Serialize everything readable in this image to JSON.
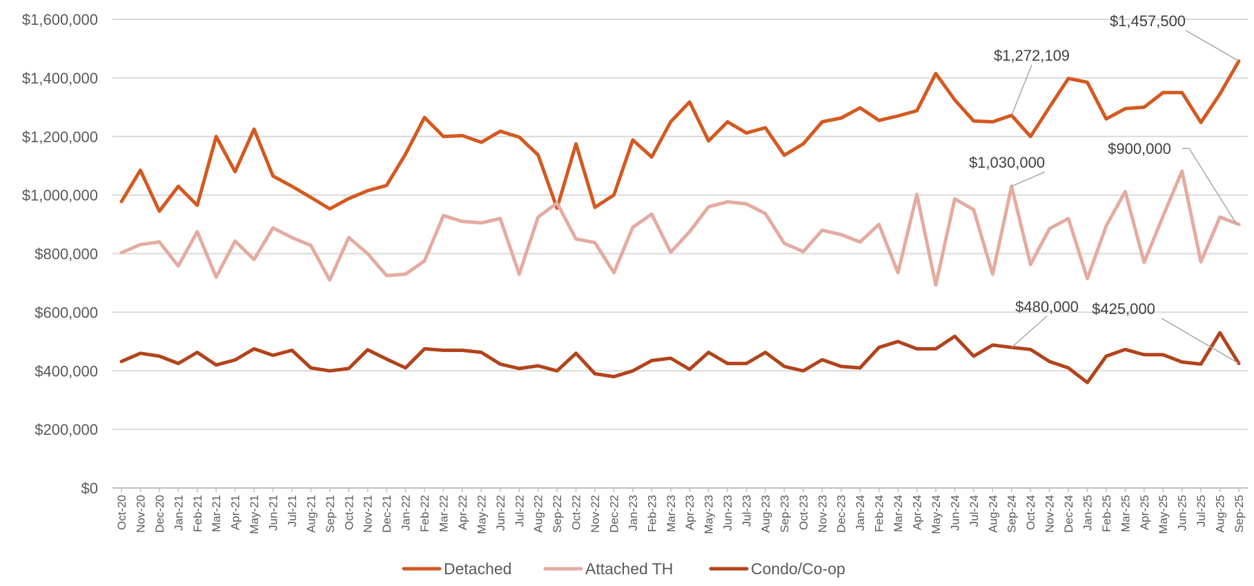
{
  "chart_data": {
    "type": "line",
    "title": "",
    "xlabel": "",
    "ylabel": "",
    "ylim": [
      0,
      1600000
    ],
    "yticks": [
      "$0",
      "$200,000",
      "$400,000",
      "$600,000",
      "$800,000",
      "$1,000,000",
      "$1,200,000",
      "$1,400,000",
      "$1,600,000"
    ],
    "grid": "horizontal",
    "legend_position": "bottom",
    "categories": [
      "Oct-20",
      "Nov-20",
      "Dec-20",
      "Jan-21",
      "Feb-21",
      "Mar-21",
      "Apr-21",
      "May-21",
      "Jun-21",
      "Jul-21",
      "Aug-21",
      "Sep-21",
      "Oct-21",
      "Nov-21",
      "Dec-21",
      "Jan-22",
      "Feb-22",
      "Mar-22",
      "Apr-22",
      "May-22",
      "Jun-22",
      "Jul-22",
      "Aug-22",
      "Sep-22",
      "Oct-22",
      "Nov-22",
      "Dec-22",
      "Jan-23",
      "Feb-23",
      "Mar-23",
      "Apr-23",
      "May-23",
      "Jun-23",
      "Jul-23",
      "Aug-23",
      "Sep-23",
      "Oct-23",
      "Nov-23",
      "Dec-23",
      "Jan-24",
      "Feb-24",
      "Mar-24",
      "Apr-24",
      "May-24",
      "Jun-24",
      "Jul-24",
      "Aug-24",
      "Sep-24",
      "Oct-24",
      "Nov-24",
      "Dec-24",
      "Jan-25",
      "Feb-25",
      "Mar-25",
      "Apr-25",
      "May-25",
      "Jun-25",
      "Jul-25",
      "Aug-25",
      "Sep-25"
    ],
    "series": [
      {
        "name": "Detached",
        "color": "#D4591F",
        "values": [
          978000,
          1085000,
          945000,
          1030000,
          965000,
          1200000,
          1080000,
          1225000,
          1065000,
          1030000,
          992000,
          953000,
          988000,
          1015000,
          1033000,
          1140000,
          1265000,
          1200000,
          1203000,
          1180000,
          1218000,
          1198000,
          1137000,
          955000,
          1175000,
          958000,
          1000000,
          1188000,
          1130000,
          1250000,
          1318000,
          1185000,
          1250000,
          1212000,
          1230000,
          1136000,
          1175000,
          1250000,
          1263000,
          1298000,
          1255000,
          1270000,
          1288000,
          1415000,
          1325000,
          1253000,
          1250000,
          1272109,
          1200000,
          1300000,
          1398000,
          1385000,
          1260000,
          1295000,
          1300000,
          1350000,
          1350000,
          1248000,
          1345000,
          1457500
        ]
      },
      {
        "name": "Attached TH",
        "color": "#E4ABA0",
        "values": [
          803000,
          831000,
          840000,
          758000,
          875000,
          720000,
          843000,
          780000,
          888000,
          855000,
          828000,
          710000,
          855000,
          800000,
          725000,
          730000,
          775000,
          930000,
          910000,
          905000,
          920000,
          730000,
          925000,
          973000,
          850000,
          838000,
          735000,
          890000,
          935000,
          805000,
          875000,
          960000,
          977000,
          970000,
          937000,
          835000,
          807000,
          880000,
          865000,
          840000,
          900000,
          735000,
          1002000,
          693000,
          987000,
          950000,
          730000,
          1030000,
          763000,
          885000,
          920000,
          715000,
          895000,
          1012000,
          770000,
          928000,
          1082000,
          772000,
          925000,
          900000
        ]
      },
      {
        "name": "Condo/Co-op",
        "color": "#B2431A",
        "values": [
          432000,
          460000,
          450000,
          425000,
          463000,
          420000,
          437000,
          475000,
          453000,
          470000,
          410000,
          400000,
          408000,
          472000,
          440000,
          410000,
          475000,
          470000,
          470000,
          463000,
          423000,
          408000,
          417000,
          400000,
          460000,
          390000,
          380000,
          400000,
          435000,
          443000,
          405000,
          463000,
          425000,
          425000,
          463000,
          415000,
          400000,
          438000,
          415000,
          410000,
          480000,
          500000,
          475000,
          475000,
          518000,
          450000,
          488000,
          480000,
          473000,
          432000,
          410000,
          360000,
          450000,
          473000,
          455000,
          455000,
          430000,
          423000,
          530000,
          425000
        ]
      }
    ],
    "annotations": [
      {
        "series": 0,
        "index": 47,
        "label": "$1,272,109"
      },
      {
        "series": 0,
        "index": 59,
        "label": "$1,457,500"
      },
      {
        "series": 1,
        "index": 47,
        "label": "$1,030,000"
      },
      {
        "series": 1,
        "index": 59,
        "label": "$900,000"
      },
      {
        "series": 2,
        "index": 47,
        "label": "$480,000"
      },
      {
        "series": 2,
        "index": 59,
        "label": "$425,000"
      }
    ]
  }
}
